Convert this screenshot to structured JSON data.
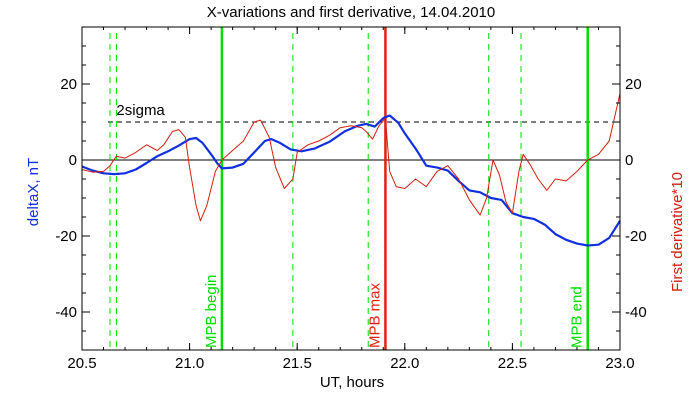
{
  "chart_data": {
    "type": "line",
    "title": "X-variations and first derivative, 14.04.2010",
    "xlabel": "UT, hours",
    "ylabel_left": "deltaX, nT",
    "ylabel_right": "First derivative*10",
    "xlim": [
      20.5,
      23.0
    ],
    "ylim": [
      -50,
      35
    ],
    "x_ticks": [
      20.5,
      21.0,
      21.5,
      22.0,
      22.5,
      23.0
    ],
    "x_tick_labels": [
      "20.5",
      "21.0",
      "21.5",
      "22.0",
      "22.5",
      "23.0"
    ],
    "y_ticks": [
      -40,
      -20,
      0,
      20
    ],
    "y_tick_labels": [
      "-40",
      "-20",
      "0",
      "20"
    ],
    "threshold": {
      "label": "2sigma",
      "value": 10
    },
    "zero_line": 0,
    "vlines_minor": [
      20.63,
      20.66,
      21.48,
      21.83,
      22.39,
      22.54
    ],
    "vlines_major": [
      {
        "x": 21.15,
        "label": "MPB begin",
        "color": "#00dd00"
      },
      {
        "x": 21.91,
        "label": "MPB max",
        "color": "#e02010"
      },
      {
        "x": 22.85,
        "label": "MPB end",
        "color": "#00dd00"
      }
    ],
    "series": [
      {
        "name": "deltaX, nT",
        "color": "#1030e0",
        "axis": "left",
        "points": [
          [
            20.5,
            -1.7
          ],
          [
            20.55,
            -2.8
          ],
          [
            20.6,
            -3.5
          ],
          [
            20.65,
            -3.7
          ],
          [
            20.7,
            -3.5
          ],
          [
            20.75,
            -2.5
          ],
          [
            20.8,
            -0.8
          ],
          [
            20.85,
            1.0
          ],
          [
            20.9,
            2.3
          ],
          [
            20.95,
            3.8
          ],
          [
            21.0,
            5.5
          ],
          [
            21.03,
            5.8
          ],
          [
            21.06,
            4.5
          ],
          [
            21.1,
            1.5
          ],
          [
            21.13,
            -1.0
          ],
          [
            21.15,
            -2.2
          ],
          [
            21.2,
            -2.0
          ],
          [
            21.25,
            -1.0
          ],
          [
            21.3,
            2.0
          ],
          [
            21.35,
            5.0
          ],
          [
            21.38,
            5.5
          ],
          [
            21.42,
            4.5
          ],
          [
            21.47,
            2.8
          ],
          [
            21.52,
            2.3
          ],
          [
            21.58,
            3.0
          ],
          [
            21.65,
            4.8
          ],
          [
            21.72,
            7.5
          ],
          [
            21.78,
            9.0
          ],
          [
            21.82,
            9.5
          ],
          [
            21.86,
            8.8
          ],
          [
            21.9,
            11.0
          ],
          [
            21.93,
            11.7
          ],
          [
            21.97,
            9.8
          ],
          [
            22.0,
            7.0
          ],
          [
            22.05,
            3.0
          ],
          [
            22.1,
            -1.5
          ],
          [
            22.15,
            -2.0
          ],
          [
            22.2,
            -2.8
          ],
          [
            22.25,
            -5.5
          ],
          [
            22.3,
            -8.0
          ],
          [
            22.35,
            -8.5
          ],
          [
            22.4,
            -10.0
          ],
          [
            22.45,
            -10.5
          ],
          [
            22.5,
            -14.0
          ],
          [
            22.55,
            -15.0
          ],
          [
            22.6,
            -15.5
          ],
          [
            22.65,
            -17.0
          ],
          [
            22.7,
            -19.5
          ],
          [
            22.75,
            -21.0
          ],
          [
            22.8,
            -22.0
          ],
          [
            22.85,
            -22.5
          ],
          [
            22.9,
            -22.3
          ],
          [
            22.95,
            -20.5
          ],
          [
            23.0,
            -16.0
          ]
        ]
      },
      {
        "name": "First derivative*10",
        "color": "#d02010",
        "axis": "right",
        "points": [
          [
            20.5,
            -2.5
          ],
          [
            20.55,
            -3.2
          ],
          [
            20.6,
            -3.0
          ],
          [
            20.63,
            -1.5
          ],
          [
            20.66,
            1.0
          ],
          [
            20.7,
            0.5
          ],
          [
            20.75,
            2.0
          ],
          [
            20.8,
            4.0
          ],
          [
            20.85,
            2.5
          ],
          [
            20.88,
            4.0
          ],
          [
            20.92,
            7.5
          ],
          [
            20.95,
            8.0
          ],
          [
            20.98,
            6.0
          ],
          [
            21.0,
            -2.0
          ],
          [
            21.03,
            -12.0
          ],
          [
            21.05,
            -16.0
          ],
          [
            21.08,
            -12.0
          ],
          [
            21.12,
            -3.0
          ],
          [
            21.15,
            0.0
          ],
          [
            21.2,
            2.5
          ],
          [
            21.25,
            5.0
          ],
          [
            21.3,
            10.0
          ],
          [
            21.33,
            10.5
          ],
          [
            21.37,
            6.0
          ],
          [
            21.4,
            -2.0
          ],
          [
            21.44,
            -7.5
          ],
          [
            21.48,
            -5.0
          ],
          [
            21.5,
            2.0
          ],
          [
            21.55,
            4.0
          ],
          [
            21.6,
            5.0
          ],
          [
            21.65,
            6.5
          ],
          [
            21.7,
            8.5
          ],
          [
            21.75,
            9.0
          ],
          [
            21.8,
            8.5
          ],
          [
            21.82,
            7.5
          ],
          [
            21.85,
            5.5
          ],
          [
            21.88,
            9.0
          ],
          [
            21.91,
            11.0
          ],
          [
            21.93,
            -3.0
          ],
          [
            21.96,
            -7.0
          ],
          [
            22.0,
            -7.5
          ],
          [
            22.05,
            -5.0
          ],
          [
            22.1,
            -7.0
          ],
          [
            22.15,
            -3.0
          ],
          [
            22.2,
            -1.5
          ],
          [
            22.25,
            -5.0
          ],
          [
            22.3,
            -10.5
          ],
          [
            22.35,
            -14.5
          ],
          [
            22.38,
            -10.0
          ],
          [
            22.41,
            0.0
          ],
          [
            22.44,
            -4.0
          ],
          [
            22.47,
            -11.0
          ],
          [
            22.5,
            -14.0
          ],
          [
            22.53,
            -3.0
          ],
          [
            22.55,
            1.5
          ],
          [
            22.58,
            -1.0
          ],
          [
            22.62,
            -5.0
          ],
          [
            22.66,
            -8.0
          ],
          [
            22.7,
            -5.0
          ],
          [
            22.75,
            -5.5
          ],
          [
            22.8,
            -3.0
          ],
          [
            22.85,
            0.0
          ],
          [
            22.9,
            1.5
          ],
          [
            22.95,
            5.0
          ],
          [
            23.0,
            17.5
          ]
        ]
      }
    ]
  }
}
